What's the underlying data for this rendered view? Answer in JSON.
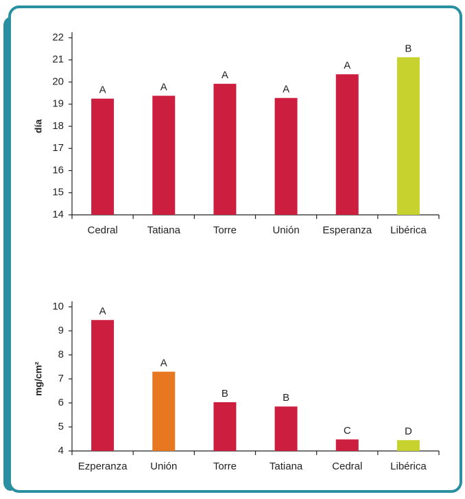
{
  "chart_data": [
    {
      "type": "bar",
      "y_label": "día",
      "categories": [
        "Cedral",
        "Tatiana",
        "Torre",
        "Unión",
        "Esperanza",
        "Libérica"
      ],
      "values": [
        19.25,
        19.38,
        19.92,
        19.28,
        20.35,
        21.12
      ],
      "colors": [
        "#cc1f3f",
        "#cc1f3f",
        "#cc1f3f",
        "#cc1f3f",
        "#cc1f3f",
        "#c8d22e"
      ],
      "group_labels": [
        "A",
        "A",
        "A",
        "A",
        "A",
        "B"
      ],
      "ylim": [
        14,
        22
      ],
      "yticks": [
        14,
        15,
        16,
        17,
        18,
        19,
        20,
        21,
        22
      ]
    },
    {
      "type": "bar",
      "y_label": "mg/cm²",
      "categories": [
        "Ezperanza",
        "Unión",
        "Torre",
        "Tatiana",
        "Cedral",
        "Libérica"
      ],
      "values": [
        9.45,
        7.3,
        6.03,
        5.85,
        4.48,
        4.45
      ],
      "colors": [
        "#cc1f3f",
        "#e87722",
        "#cc1f3f",
        "#cc1f3f",
        "#cc1f3f",
        "#c8d22e"
      ],
      "group_labels": [
        "A",
        "A",
        "B",
        "B",
        "C",
        "D"
      ],
      "ylim": [
        4,
        10
      ],
      "yticks": [
        4,
        5,
        6,
        7,
        8,
        9,
        10
      ]
    }
  ]
}
